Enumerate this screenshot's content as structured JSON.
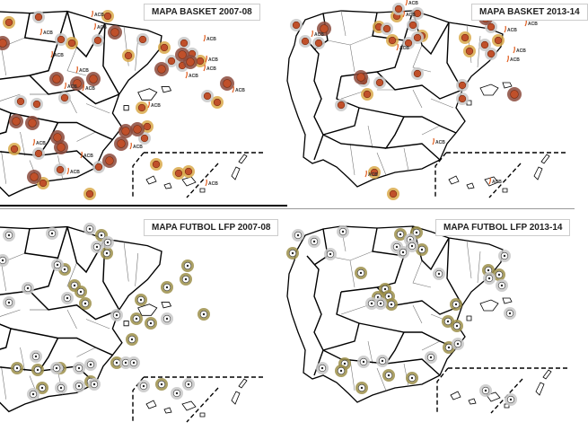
{
  "panels": [
    {
      "title": "MAPA BASKET  2007-08",
      "kind": "basket"
    },
    {
      "title": "MAPA BASKET 2013-14",
      "kind": "basket"
    },
    {
      "title": "MAPA FUTBOL LFP 2007-08",
      "kind": "futbol"
    },
    {
      "title": "MAPA FUTBOL LFP 2013-14",
      "kind": "futbol"
    }
  ],
  "league_label": "ACB",
  "colors": {
    "maroon_marker": "#8b4a3c",
    "gray_marker": "#c8c8c8",
    "gold_marker": "#d9a94a",
    "futbol_gold_marker": "#9c8f4a",
    "acb_accent": "#e05a1a",
    "borders": "#000000"
  },
  "icons": {
    "basket": "basketball-icon",
    "futbol": "football-icon"
  }
}
